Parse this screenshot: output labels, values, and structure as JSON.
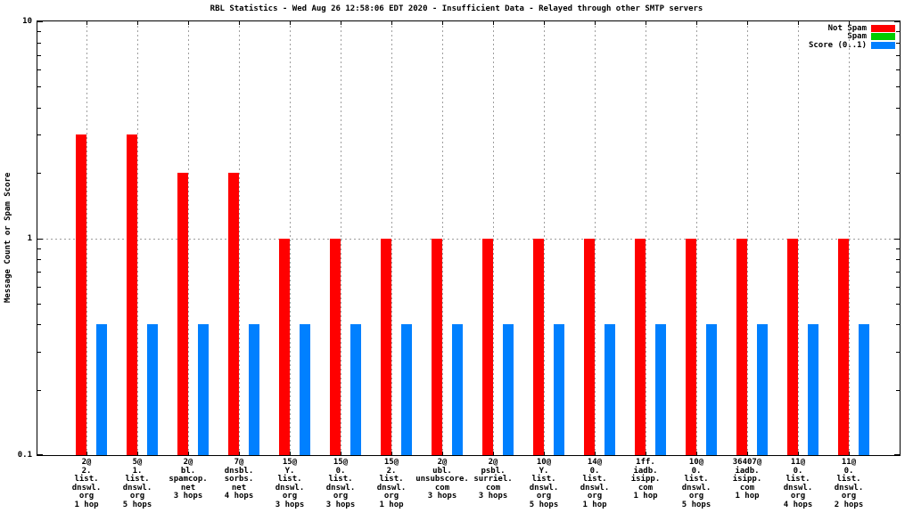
{
  "chart_data": {
    "type": "bar",
    "title": "RBL Statistics - Wed Aug 26 12:58:06 EDT 2020 - Insufficient Data - Relayed through other SMTP servers",
    "ylabel": "Message Count or Spam Score",
    "yscale": "log",
    "ylim": [
      0.1,
      10
    ],
    "yticks": [
      {
        "label": "10",
        "value": 10
      },
      {
        "label": "1",
        "value": 1
      },
      {
        "label": "0.1",
        "value": 0.1
      }
    ],
    "grid": {
      "horizontal_at": [
        1
      ],
      "vertical": "per-category",
      "style": "dotted-gray"
    },
    "legend_position": "top-right-inside",
    "legend": [
      {
        "label": "Not Spam",
        "color": "#ff0000"
      },
      {
        "label": "Spam",
        "color": "#00cc00"
      },
      {
        "label": "Score (0..1)",
        "color": "#0080ff"
      }
    ],
    "categories": [
      [
        "2@",
        "2.",
        "list.",
        "dnswl.",
        "org",
        "1 hop"
      ],
      [
        "5@",
        "1.",
        "list.",
        "dnswl.",
        "org",
        "5 hops"
      ],
      [
        "2@",
        "bl.",
        "spamcop.",
        "net",
        "3 hops"
      ],
      [
        "7@",
        "dnsbl.",
        "sorbs.",
        "net",
        "4 hops"
      ],
      [
        "15@",
        "Y.",
        "list.",
        "dnswl.",
        "org",
        "3 hops"
      ],
      [
        "15@",
        "0.",
        "list.",
        "dnswl.",
        "org",
        "3 hops"
      ],
      [
        "15@",
        "2.",
        "list.",
        "dnswl.",
        "org",
        "1 hop"
      ],
      [
        "2@",
        "ubl.",
        "unsubscore.",
        "com",
        "3 hops"
      ],
      [
        "2@",
        "psbl.",
        "surriel.",
        "com",
        "3 hops"
      ],
      [
        "10@",
        "Y.",
        "list.",
        "dnswl.",
        "org",
        "5 hops"
      ],
      [
        "14@",
        "0.",
        "list.",
        "dnswl.",
        "org",
        "1 hop"
      ],
      [
        "1ff.",
        "iadb.",
        "isipp.",
        "com",
        "1 hop"
      ],
      [
        "10@",
        "0.",
        "list.",
        "dnswl.",
        "org",
        "5 hops"
      ],
      [
        "36407@",
        "iadb.",
        "isipp.",
        "com",
        "1 hop"
      ],
      [
        "11@",
        "0.",
        "list.",
        "dnswl.",
        "org",
        "4 hops"
      ],
      [
        "11@",
        "0.",
        "list.",
        "dnswl.",
        "org",
        "2 hops"
      ]
    ],
    "series": [
      {
        "name": "Not Spam",
        "color": "#ff0000",
        "values": [
          3,
          3,
          2,
          2,
          1,
          1,
          1,
          1,
          1,
          1,
          1,
          1,
          1,
          1,
          1,
          1
        ]
      },
      {
        "name": "Spam",
        "color": "#00cc00",
        "values": [
          0,
          0,
          0,
          0,
          0,
          0,
          0,
          0,
          0,
          0,
          0,
          0,
          0,
          0,
          0,
          0
        ]
      },
      {
        "name": "Score (0..1)",
        "color": "#0080ff",
        "values": [
          0.4,
          0.4,
          0.4,
          0.4,
          0.4,
          0.4,
          0.4,
          0.4,
          0.4,
          0.4,
          0.4,
          0.4,
          0.4,
          0.4,
          0.4,
          0.4
        ]
      }
    ]
  }
}
